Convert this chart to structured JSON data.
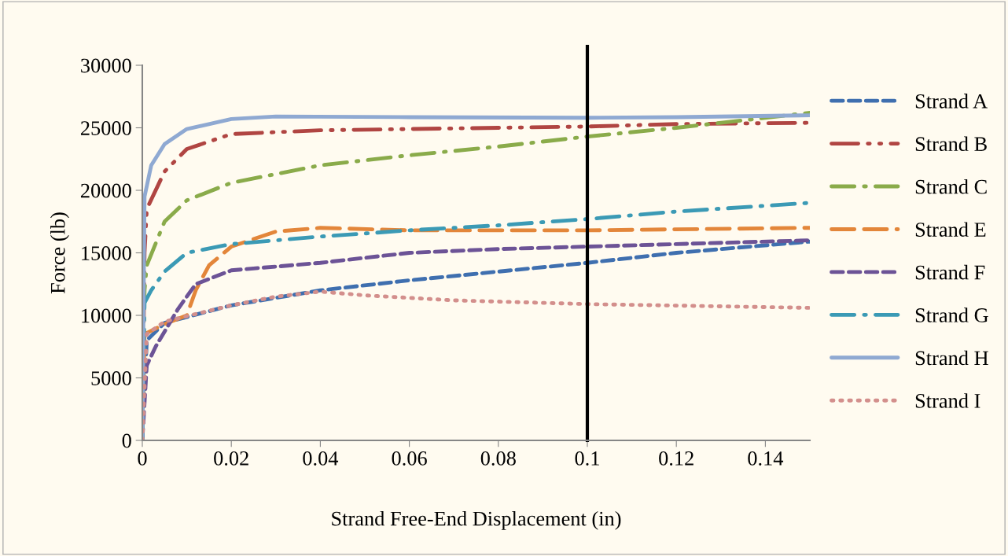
{
  "chart_data": {
    "type": "line",
    "xlabel": "Strand Free-End Displacement (in)",
    "ylabel": "Force (lb)",
    "xlim": [
      0,
      0.15
    ],
    "xticks": [
      0,
      0.02,
      0.04,
      0.06,
      0.08,
      0.1,
      0.12,
      0.14
    ],
    "ylim": [
      0,
      30000
    ],
    "yticks": [
      0,
      5000,
      10000,
      15000,
      20000,
      25000,
      30000
    ],
    "grid": false,
    "legend": "right",
    "marker": "none",
    "ref_lines": [
      {
        "axis": "x",
        "value": 0.1,
        "color": "#000000",
        "line_style": "solid"
      }
    ],
    "series": [
      {
        "name": "Strand A",
        "color": "#3f6faf",
        "line_style": "dashed",
        "x": [
          0,
          0.001,
          0.005,
          0.02,
          0.04,
          0.06,
          0.08,
          0.1,
          0.12,
          0.15
        ],
        "values": [
          0,
          8000,
          9400,
          10800,
          12000,
          12800,
          13500,
          14200,
          15000,
          15900
        ]
      },
      {
        "name": "Strand B",
        "color": "#b04542",
        "line_style": "dash-dot-dot",
        "x": [
          0,
          0.0005,
          0.001,
          0.005,
          0.01,
          0.02,
          0.04,
          0.06,
          0.08,
          0.1,
          0.12,
          0.15
        ],
        "values": [
          0,
          15000,
          18500,
          21500,
          23300,
          24500,
          24800,
          24900,
          25000,
          25100,
          25300,
          25400
        ]
      },
      {
        "name": "Strand C",
        "color": "#8aab4a",
        "line_style": "dash-dot",
        "x": [
          0,
          0.0005,
          0.001,
          0.005,
          0.01,
          0.02,
          0.04,
          0.06,
          0.08,
          0.1,
          0.12,
          0.15
        ],
        "values": [
          0,
          12000,
          14000,
          17500,
          19200,
          20600,
          22000,
          22800,
          23500,
          24300,
          25000,
          26200
        ]
      },
      {
        "name": "Strand E",
        "color": "#e3863a",
        "line_style": "long-dashed",
        "x": [
          0,
          0.0005,
          0.005,
          0.01,
          0.012,
          0.015,
          0.02,
          0.03,
          0.04,
          0.06,
          0.1,
          0.15
        ],
        "values": [
          0,
          8500,
          9300,
          10000,
          12000,
          14000,
          15500,
          16700,
          17000,
          16800,
          16800,
          17000
        ]
      },
      {
        "name": "Strand F",
        "color": "#6c5396",
        "line_style": "dashed",
        "x": [
          0,
          0.001,
          0.003,
          0.008,
          0.012,
          0.02,
          0.04,
          0.06,
          0.08,
          0.1,
          0.12,
          0.15
        ],
        "values": [
          0,
          6000,
          7500,
          10500,
          12500,
          13600,
          14200,
          15000,
          15300,
          15500,
          15700,
          16000
        ]
      },
      {
        "name": "Strand G",
        "color": "#3b9ab5",
        "line_style": "dash-dot",
        "x": [
          0,
          0.0005,
          0.002,
          0.005,
          0.01,
          0.02,
          0.04,
          0.06,
          0.08,
          0.1,
          0.12,
          0.15
        ],
        "values": [
          0,
          11000,
          12000,
          13500,
          15000,
          15700,
          16300,
          16800,
          17200,
          17700,
          18300,
          19000
        ]
      },
      {
        "name": "Strand H",
        "color": "#8fa9d2",
        "line_style": "solid",
        "x": [
          0,
          0.0005,
          0.002,
          0.005,
          0.01,
          0.02,
          0.03,
          0.06,
          0.1,
          0.12,
          0.15
        ],
        "values": [
          0,
          19500,
          22000,
          23700,
          24900,
          25700,
          25900,
          25850,
          25800,
          25850,
          26000
        ]
      },
      {
        "name": "Strand I",
        "color": "#d38f8c",
        "line_style": "dotted",
        "x": [
          0,
          0.001,
          0.005,
          0.02,
          0.03,
          0.04,
          0.05,
          0.07,
          0.1,
          0.15
        ],
        "values": [
          0,
          8500,
          9500,
          10800,
          11500,
          11900,
          11600,
          11200,
          10900,
          10600
        ]
      }
    ]
  }
}
